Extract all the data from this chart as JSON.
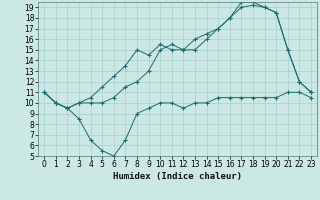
{
  "xlabel": "Humidex (Indice chaleur)",
  "bg_color": "#cce8e4",
  "grid_color": "#aacfcb",
  "line_color": "#1a6b6b",
  "xlim": [
    -0.5,
    23.5
  ],
  "ylim": [
    5,
    19.5
  ],
  "xticks": [
    0,
    1,
    2,
    3,
    4,
    5,
    6,
    7,
    8,
    9,
    10,
    11,
    12,
    13,
    14,
    15,
    16,
    17,
    18,
    19,
    20,
    21,
    22,
    23
  ],
  "yticks": [
    5,
    6,
    7,
    8,
    9,
    10,
    11,
    12,
    13,
    14,
    15,
    16,
    17,
    18,
    19
  ],
  "line1_x": [
    0,
    1,
    2,
    3,
    4,
    5,
    6,
    7,
    8,
    9,
    10,
    11,
    12,
    13,
    14,
    15,
    16,
    17,
    18,
    19,
    20,
    21,
    22,
    23
  ],
  "line1_y": [
    11,
    10,
    9.5,
    8.5,
    6.5,
    5.5,
    5,
    6.5,
    9,
    9.5,
    10,
    10,
    9.5,
    10,
    10,
    10.5,
    10.5,
    10.5,
    10.5,
    10.5,
    10.5,
    11,
    11,
    10.5
  ],
  "line2_x": [
    0,
    1,
    2,
    3,
    4,
    5,
    6,
    7,
    8,
    9,
    10,
    11,
    12,
    13,
    14,
    15,
    16,
    17,
    18,
    19,
    20,
    21,
    22,
    23
  ],
  "line2_y": [
    11,
    10,
    9.5,
    10,
    10,
    10,
    10.5,
    11.5,
    12,
    13,
    15,
    15.5,
    15,
    15,
    16,
    17,
    18,
    19,
    19.2,
    19,
    18.5,
    15,
    12,
    11
  ],
  "line3_x": [
    0,
    1,
    2,
    3,
    4,
    5,
    6,
    7,
    8,
    9,
    10,
    11,
    12,
    13,
    14,
    15,
    16,
    17,
    18,
    19,
    20,
    21,
    22,
    23
  ],
  "line3_y": [
    11,
    10,
    9.5,
    10,
    10.5,
    11.5,
    12.5,
    13.5,
    15,
    14.5,
    15.5,
    15,
    15,
    16,
    16.5,
    17,
    18,
    19.5,
    19.5,
    19,
    18.5,
    15,
    12,
    11
  ],
  "tick_fontsize": 5.5,
  "xlabel_fontsize": 6.5
}
